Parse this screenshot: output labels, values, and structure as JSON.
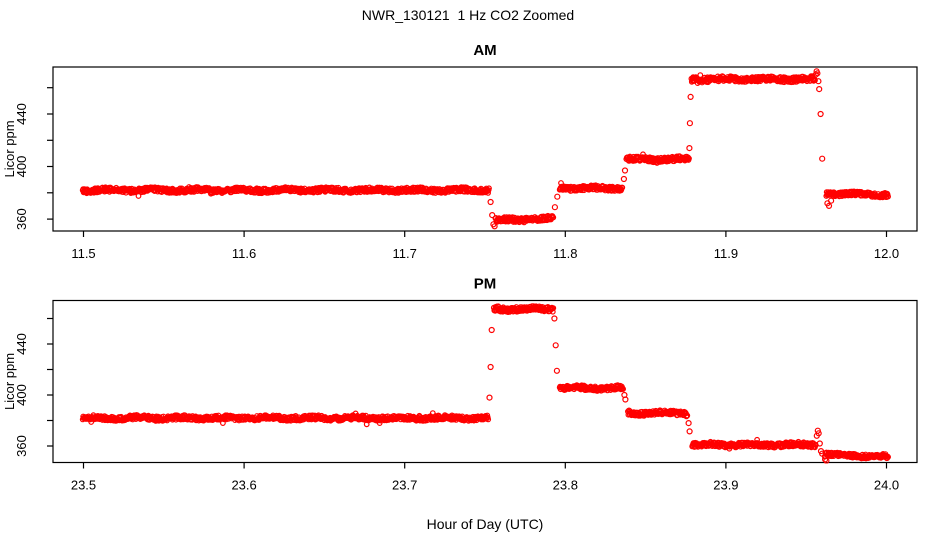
{
  "title": "NWR_130121  1 Hz CO2 Zoomed",
  "xlabel": "Hour of Day (UTC)",
  "colors": {
    "points": "#ff0000",
    "axis": "#000000",
    "background": "#ffffff"
  },
  "chart_data": [
    {
      "type": "scatter",
      "title": "AM",
      "ylabel": "Licor ppm",
      "marker": "open-circle",
      "sample_rate_hz": 1,
      "xlim": [
        11.481,
        12.019
      ],
      "ylim": [
        350.9,
        475.8
      ],
      "xticks": [
        11.5,
        11.6,
        11.7,
        11.8,
        11.9,
        12.0
      ],
      "yticks": [
        360,
        380,
        400,
        420,
        440,
        460
      ],
      "ytick_labels": [
        360,
        400,
        440
      ],
      "segments": [
        {
          "x0": 11.4995,
          "x1": 11.7525,
          "y": 382.0,
          "noise": 1.8
        },
        {
          "x0": 11.7565,
          "x1": 11.7925,
          "y": 359.0,
          "y1": 360.5,
          "noise": 1.8
        },
        {
          "x0": 11.7965,
          "x1": 11.8355,
          "y": 383.5,
          "noise": 1.8
        },
        {
          "x0": 11.838,
          "x1": 11.877,
          "y": 405.5,
          "noise": 1.8
        },
        {
          "x0": 11.8785,
          "x1": 11.9555,
          "y": 466.5,
          "noise": 2.0
        },
        {
          "x0": 11.9625,
          "x1": 12.001,
          "y": 379.5,
          "y1": 378.5,
          "noise": 1.7
        }
      ],
      "transition_points": [
        [
          11.7535,
          373.0
        ],
        [
          11.7545,
          363.0
        ],
        [
          11.7552,
          356.0
        ],
        [
          11.756,
          354.5
        ],
        [
          11.7935,
          369.0
        ],
        [
          11.795,
          377.0
        ],
        [
          11.8365,
          390.5
        ],
        [
          11.8372,
          397.0
        ],
        [
          11.8773,
          414.0
        ],
        [
          11.8776,
          433.0
        ],
        [
          11.878,
          453.0
        ],
        [
          11.956,
          470.0
        ],
        [
          11.9565,
          472.5
        ],
        [
          11.957,
          471.0
        ],
        [
          11.9576,
          465.0
        ],
        [
          11.9581,
          459.0
        ],
        [
          11.959,
          440.0
        ],
        [
          11.96,
          406.0
        ],
        [
          11.9632,
          372.0
        ],
        [
          11.9642,
          370.0
        ],
        [
          11.9655,
          374.0
        ]
      ]
    },
    {
      "type": "scatter",
      "title": "PM",
      "ylabel": "Licor ppm",
      "marker": "open-circle",
      "sample_rate_hz": 1,
      "xlim": [
        23.481,
        24.019
      ],
      "ylim": [
        347.1,
        474.1
      ],
      "xticks": [
        23.5,
        23.6,
        23.7,
        23.8,
        23.9,
        24.0
      ],
      "yticks": [
        360,
        380,
        400,
        420,
        440,
        460
      ],
      "ytick_labels": [
        360,
        400,
        440
      ],
      "segments": [
        {
          "x0": 23.4995,
          "x1": 23.752,
          "y": 382.0,
          "noise": 1.8
        },
        {
          "x0": 23.7555,
          "x1": 23.7925,
          "y": 467.5,
          "noise": 2.0
        },
        {
          "x0": 23.7965,
          "x1": 23.836,
          "y": 405.5,
          "noise": 1.8
        },
        {
          "x0": 23.839,
          "x1": 23.876,
          "y": 386.0,
          "noise": 1.8
        },
        {
          "x0": 23.879,
          "x1": 23.956,
          "y": 361.0,
          "noise": 1.8
        },
        {
          "x0": 23.9615,
          "x1": 24.001,
          "y": 353.5,
          "y1": 351.5,
          "noise": 1.6
        }
      ],
      "transition_points": [
        [
          23.7528,
          398.0
        ],
        [
          23.7535,
          422.0
        ],
        [
          23.7542,
          451.0
        ],
        [
          23.7932,
          460.0
        ],
        [
          23.794,
          439.0
        ],
        [
          23.7948,
          419.0
        ],
        [
          23.8368,
          400.0
        ],
        [
          23.8374,
          396.5
        ],
        [
          23.8768,
          378.0
        ],
        [
          23.8774,
          371.5
        ],
        [
          23.9566,
          368.0
        ],
        [
          23.9572,
          372.0
        ],
        [
          23.9578,
          370.0
        ],
        [
          23.9585,
          362.0
        ],
        [
          23.9592,
          356.0
        ],
        [
          23.96,
          354.0
        ],
        [
          23.9618,
          349.5
        ],
        [
          23.9626,
          348.5
        ]
      ]
    }
  ]
}
